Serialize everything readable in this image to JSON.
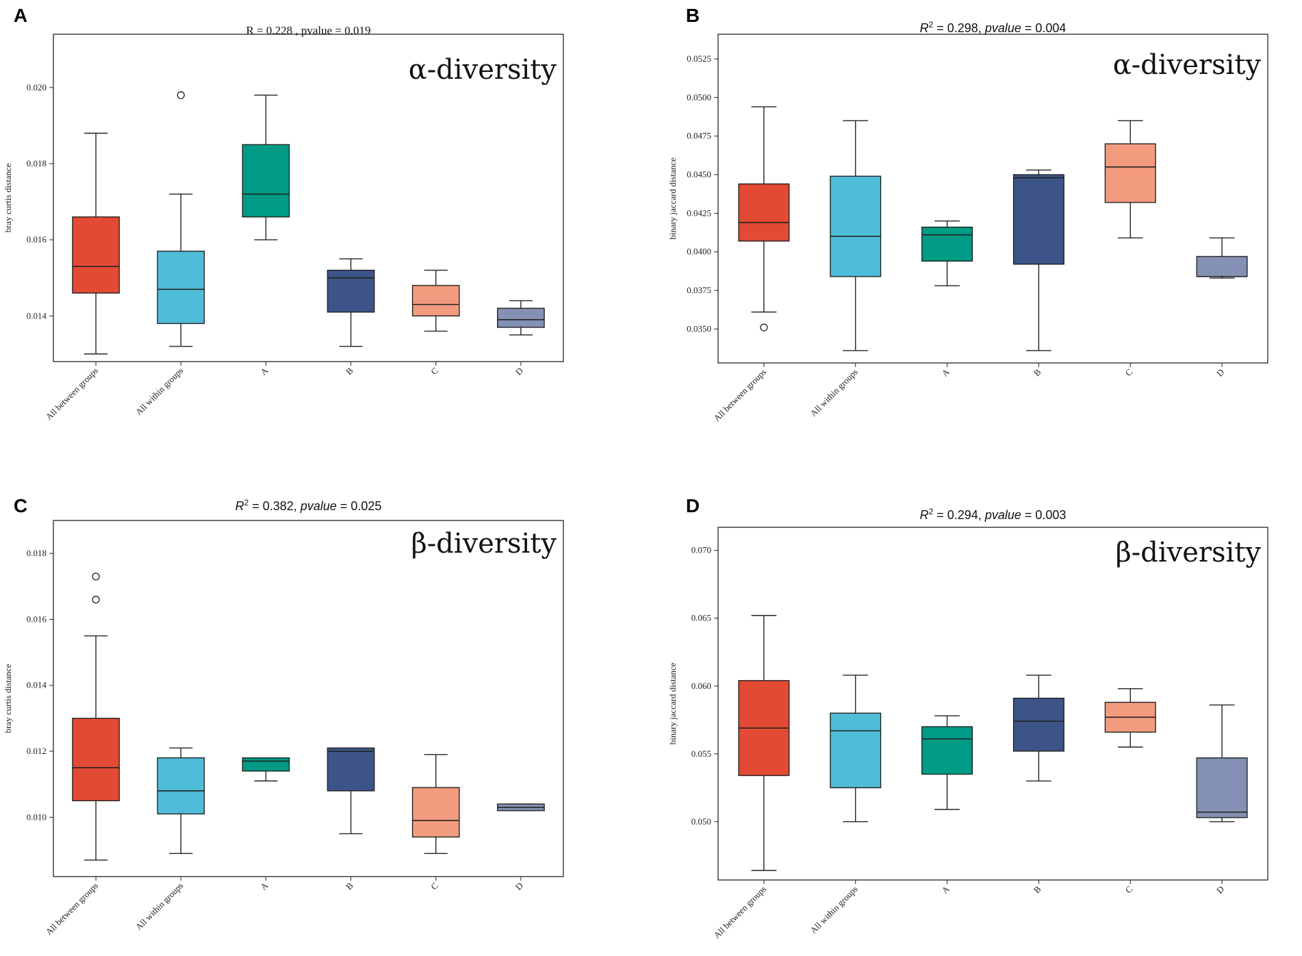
{
  "chart_data": [
    {
      "panel": "A",
      "type": "box",
      "title": "R = 0.228 , pvalue = 0.019",
      "title_style": "serif",
      "annotation": "α-diversity",
      "ylabel": "bray curtis distance",
      "ylim": [
        0.0128,
        0.0214
      ],
      "yticks": [
        0.014,
        0.016,
        0.018,
        0.02
      ],
      "tick_decimals": 3,
      "categories": [
        "All between groups",
        "All within groups",
        "A",
        "B",
        "C",
        "D"
      ],
      "colors": [
        "#e34a33",
        "#4fbcd8",
        "#009b84",
        "#3c5488",
        "#f39b7f",
        "#8491b4"
      ],
      "boxes": [
        {
          "whislo": 0.013,
          "q1": 0.0146,
          "med": 0.0153,
          "q3": 0.0166,
          "whishi": 0.0188,
          "fliers": []
        },
        {
          "whislo": 0.0132,
          "q1": 0.0138,
          "med": 0.0147,
          "q3": 0.0157,
          "whishi": 0.0172,
          "fliers": [
            0.0198
          ]
        },
        {
          "whislo": 0.016,
          "q1": 0.0166,
          "med": 0.0172,
          "q3": 0.0185,
          "whishi": 0.0198,
          "fliers": []
        },
        {
          "whislo": 0.0132,
          "q1": 0.0141,
          "med": 0.015,
          "q3": 0.0152,
          "whishi": 0.0155,
          "fliers": []
        },
        {
          "whislo": 0.0136,
          "q1": 0.014,
          "med": 0.0143,
          "q3": 0.0148,
          "whishi": 0.0152,
          "fliers": []
        },
        {
          "whislo": 0.0135,
          "q1": 0.0137,
          "med": 0.0139,
          "q3": 0.0142,
          "whishi": 0.0144,
          "fliers": []
        }
      ]
    },
    {
      "panel": "B",
      "type": "box",
      "title_prefix": "R",
      "title_sup": "2",
      "title_rest": " = 0.298, ",
      "title_pv": "pvalue",
      "title_end": " = 0.004",
      "title_style": "sans",
      "annotation": "α-diversity",
      "ylabel": "binary jaccard distance",
      "ylim": [
        0.0328,
        0.0541
      ],
      "yticks": [
        0.035,
        0.0375,
        0.04,
        0.0425,
        0.045,
        0.0475,
        0.05,
        0.0525
      ],
      "tick_decimals": 4,
      "categories": [
        "All between groups",
        "All within groups",
        "A",
        "B",
        "C",
        "D"
      ],
      "colors": [
        "#e34a33",
        "#4fbcd8",
        "#009b84",
        "#3c5488",
        "#f39b7f",
        "#8491b4"
      ],
      "boxes": [
        {
          "whislo": 0.0361,
          "q1": 0.0407,
          "med": 0.0419,
          "q3": 0.0444,
          "whishi": 0.0494,
          "fliers": [
            0.0351
          ]
        },
        {
          "whislo": 0.0336,
          "q1": 0.0384,
          "med": 0.041,
          "q3": 0.0449,
          "whishi": 0.0485,
          "fliers": []
        },
        {
          "whislo": 0.0378,
          "q1": 0.0394,
          "med": 0.0411,
          "q3": 0.0416,
          "whishi": 0.042,
          "fliers": []
        },
        {
          "whislo": 0.0336,
          "q1": 0.0392,
          "med": 0.0448,
          "q3": 0.045,
          "whishi": 0.0453,
          "fliers": []
        },
        {
          "whislo": 0.0409,
          "q1": 0.0432,
          "med": 0.0455,
          "q3": 0.047,
          "whishi": 0.0485,
          "fliers": []
        },
        {
          "whislo": 0.0383,
          "q1": 0.0384,
          "med": 0.0384,
          "q3": 0.0397,
          "whishi": 0.0409,
          "fliers": []
        }
      ]
    },
    {
      "panel": "C",
      "type": "box",
      "title_prefix": "R",
      "title_sup": "2",
      "title_rest": " = 0.382, ",
      "title_pv": "pvalue",
      "title_end": " = 0.025",
      "title_style": "sans",
      "annotation": "β-diversity",
      "ylabel": "bray curtis distance",
      "ylim": [
        0.0082,
        0.019
      ],
      "yticks": [
        0.01,
        0.012,
        0.014,
        0.016,
        0.018
      ],
      "tick_decimals": 3,
      "categories": [
        "All between groups",
        "All within groups",
        "A",
        "B",
        "C",
        "D"
      ],
      "colors": [
        "#e34a33",
        "#4fbcd8",
        "#009b84",
        "#3c5488",
        "#f39b7f",
        "#8491b4"
      ],
      "boxes": [
        {
          "whislo": 0.0087,
          "q1": 0.0105,
          "med": 0.0115,
          "q3": 0.013,
          "whishi": 0.0155,
          "fliers": [
            0.0166,
            0.0173
          ]
        },
        {
          "whislo": 0.0089,
          "q1": 0.0101,
          "med": 0.0108,
          "q3": 0.0118,
          "whishi": 0.0121,
          "fliers": []
        },
        {
          "whislo": 0.0111,
          "q1": 0.0114,
          "med": 0.0117,
          "q3": 0.0118,
          "whishi": 0.0118,
          "fliers": []
        },
        {
          "whislo": 0.0095,
          "q1": 0.0108,
          "med": 0.012,
          "q3": 0.0121,
          "whishi": 0.0121,
          "fliers": []
        },
        {
          "whislo": 0.0089,
          "q1": 0.0094,
          "med": 0.0099,
          "q3": 0.0109,
          "whishi": 0.0119,
          "fliers": []
        },
        {
          "whislo": 0.0102,
          "q1": 0.0102,
          "med": 0.0103,
          "q3": 0.0104,
          "whishi": 0.0104,
          "fliers": []
        }
      ]
    },
    {
      "panel": "D",
      "type": "box",
      "title_prefix": "R",
      "title_sup": "2",
      "title_rest": " = 0.294, ",
      "title_pv": "pvalue",
      "title_end": " = 0.003",
      "title_style": "sans",
      "annotation": "β-diversity",
      "ylabel": "binary jaccard distance",
      "ylim": [
        0.0457,
        0.0717
      ],
      "yticks": [
        0.05,
        0.055,
        0.06,
        0.065,
        0.07
      ],
      "tick_decimals": 3,
      "categories": [
        "All between groups",
        "All within groups",
        "A",
        "B",
        "C",
        "D"
      ],
      "colors": [
        "#e34a33",
        "#4fbcd8",
        "#009b84",
        "#3c5488",
        "#f39b7f",
        "#8491b4"
      ],
      "boxes": [
        {
          "whislo": 0.0464,
          "q1": 0.0534,
          "med": 0.0569,
          "q3": 0.0604,
          "whishi": 0.0652,
          "fliers": []
        },
        {
          "whislo": 0.05,
          "q1": 0.0525,
          "med": 0.0567,
          "q3": 0.058,
          "whishi": 0.0608,
          "fliers": []
        },
        {
          "whislo": 0.0509,
          "q1": 0.0535,
          "med": 0.0561,
          "q3": 0.057,
          "whishi": 0.0578,
          "fliers": []
        },
        {
          "whislo": 0.053,
          "q1": 0.0552,
          "med": 0.0574,
          "q3": 0.0591,
          "whishi": 0.0608,
          "fliers": []
        },
        {
          "whislo": 0.0555,
          "q1": 0.0566,
          "med": 0.0577,
          "q3": 0.0588,
          "whishi": 0.0598,
          "fliers": []
        },
        {
          "whislo": 0.05,
          "q1": 0.0503,
          "med": 0.0507,
          "q3": 0.0547,
          "whishi": 0.0586,
          "fliers": []
        }
      ]
    }
  ]
}
